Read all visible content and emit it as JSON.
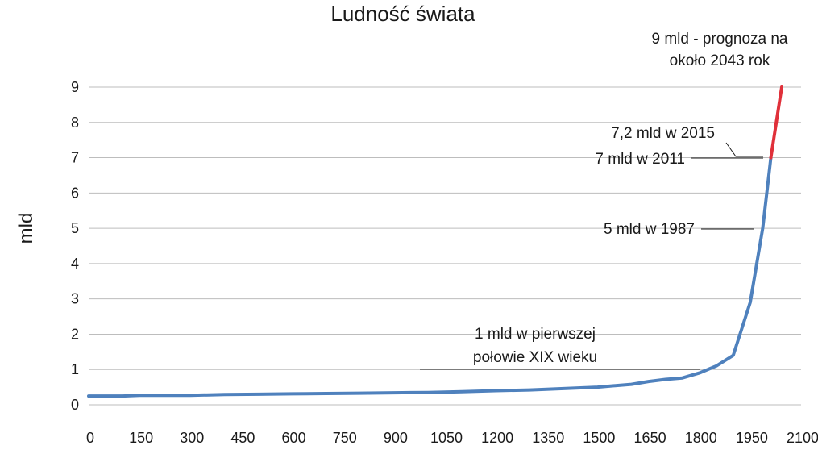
{
  "chart_data": {
    "type": "line",
    "title": "Ludność świata",
    "ylabel": "mld",
    "xlabel": "",
    "xlim": [
      0,
      2100
    ],
    "ylim": [
      0,
      9
    ],
    "x_ticks": [
      0,
      150,
      300,
      450,
      600,
      750,
      900,
      1050,
      1200,
      1350,
      1500,
      1650,
      1800,
      1950,
      2100
    ],
    "y_ticks": [
      0,
      1,
      2,
      3,
      4,
      5,
      6,
      7,
      8,
      9
    ],
    "grid": true,
    "legend": "none",
    "series": [
      {
        "color": "#4f81bd",
        "x": [
          0,
          50,
          100,
          150,
          200,
          300,
          400,
          500,
          600,
          700,
          800,
          900,
          1000,
          1100,
          1200,
          1300,
          1400,
          1500,
          1600,
          1650,
          1700,
          1750,
          1800,
          1850,
          1900,
          1950,
          1987,
          2011
        ],
        "y": [
          0.25,
          0.25,
          0.25,
          0.27,
          0.27,
          0.27,
          0.29,
          0.3,
          0.31,
          0.32,
          0.33,
          0.34,
          0.35,
          0.37,
          0.4,
          0.42,
          0.46,
          0.5,
          0.58,
          0.66,
          0.72,
          0.76,
          0.9,
          1.1,
          1.4,
          2.9,
          5.0,
          7.0
        ]
      },
      {
        "color": "#e0303a",
        "x": [
          2011,
          2043
        ],
        "y": [
          7.0,
          9.0
        ]
      }
    ],
    "annotations": [
      {
        "text_lines": [
          "9 mld - prognoza na",
          "około 2043 rok"
        ]
      },
      {
        "text_lines": [
          "7,2 mld w 2015"
        ]
      },
      {
        "text_lines": [
          "7 mld w 2011"
        ]
      },
      {
        "text_lines": [
          "5 mld w 1987"
        ]
      },
      {
        "text_lines": [
          "1 mld w pierwszej",
          "połowie XIX wieku"
        ]
      }
    ]
  }
}
